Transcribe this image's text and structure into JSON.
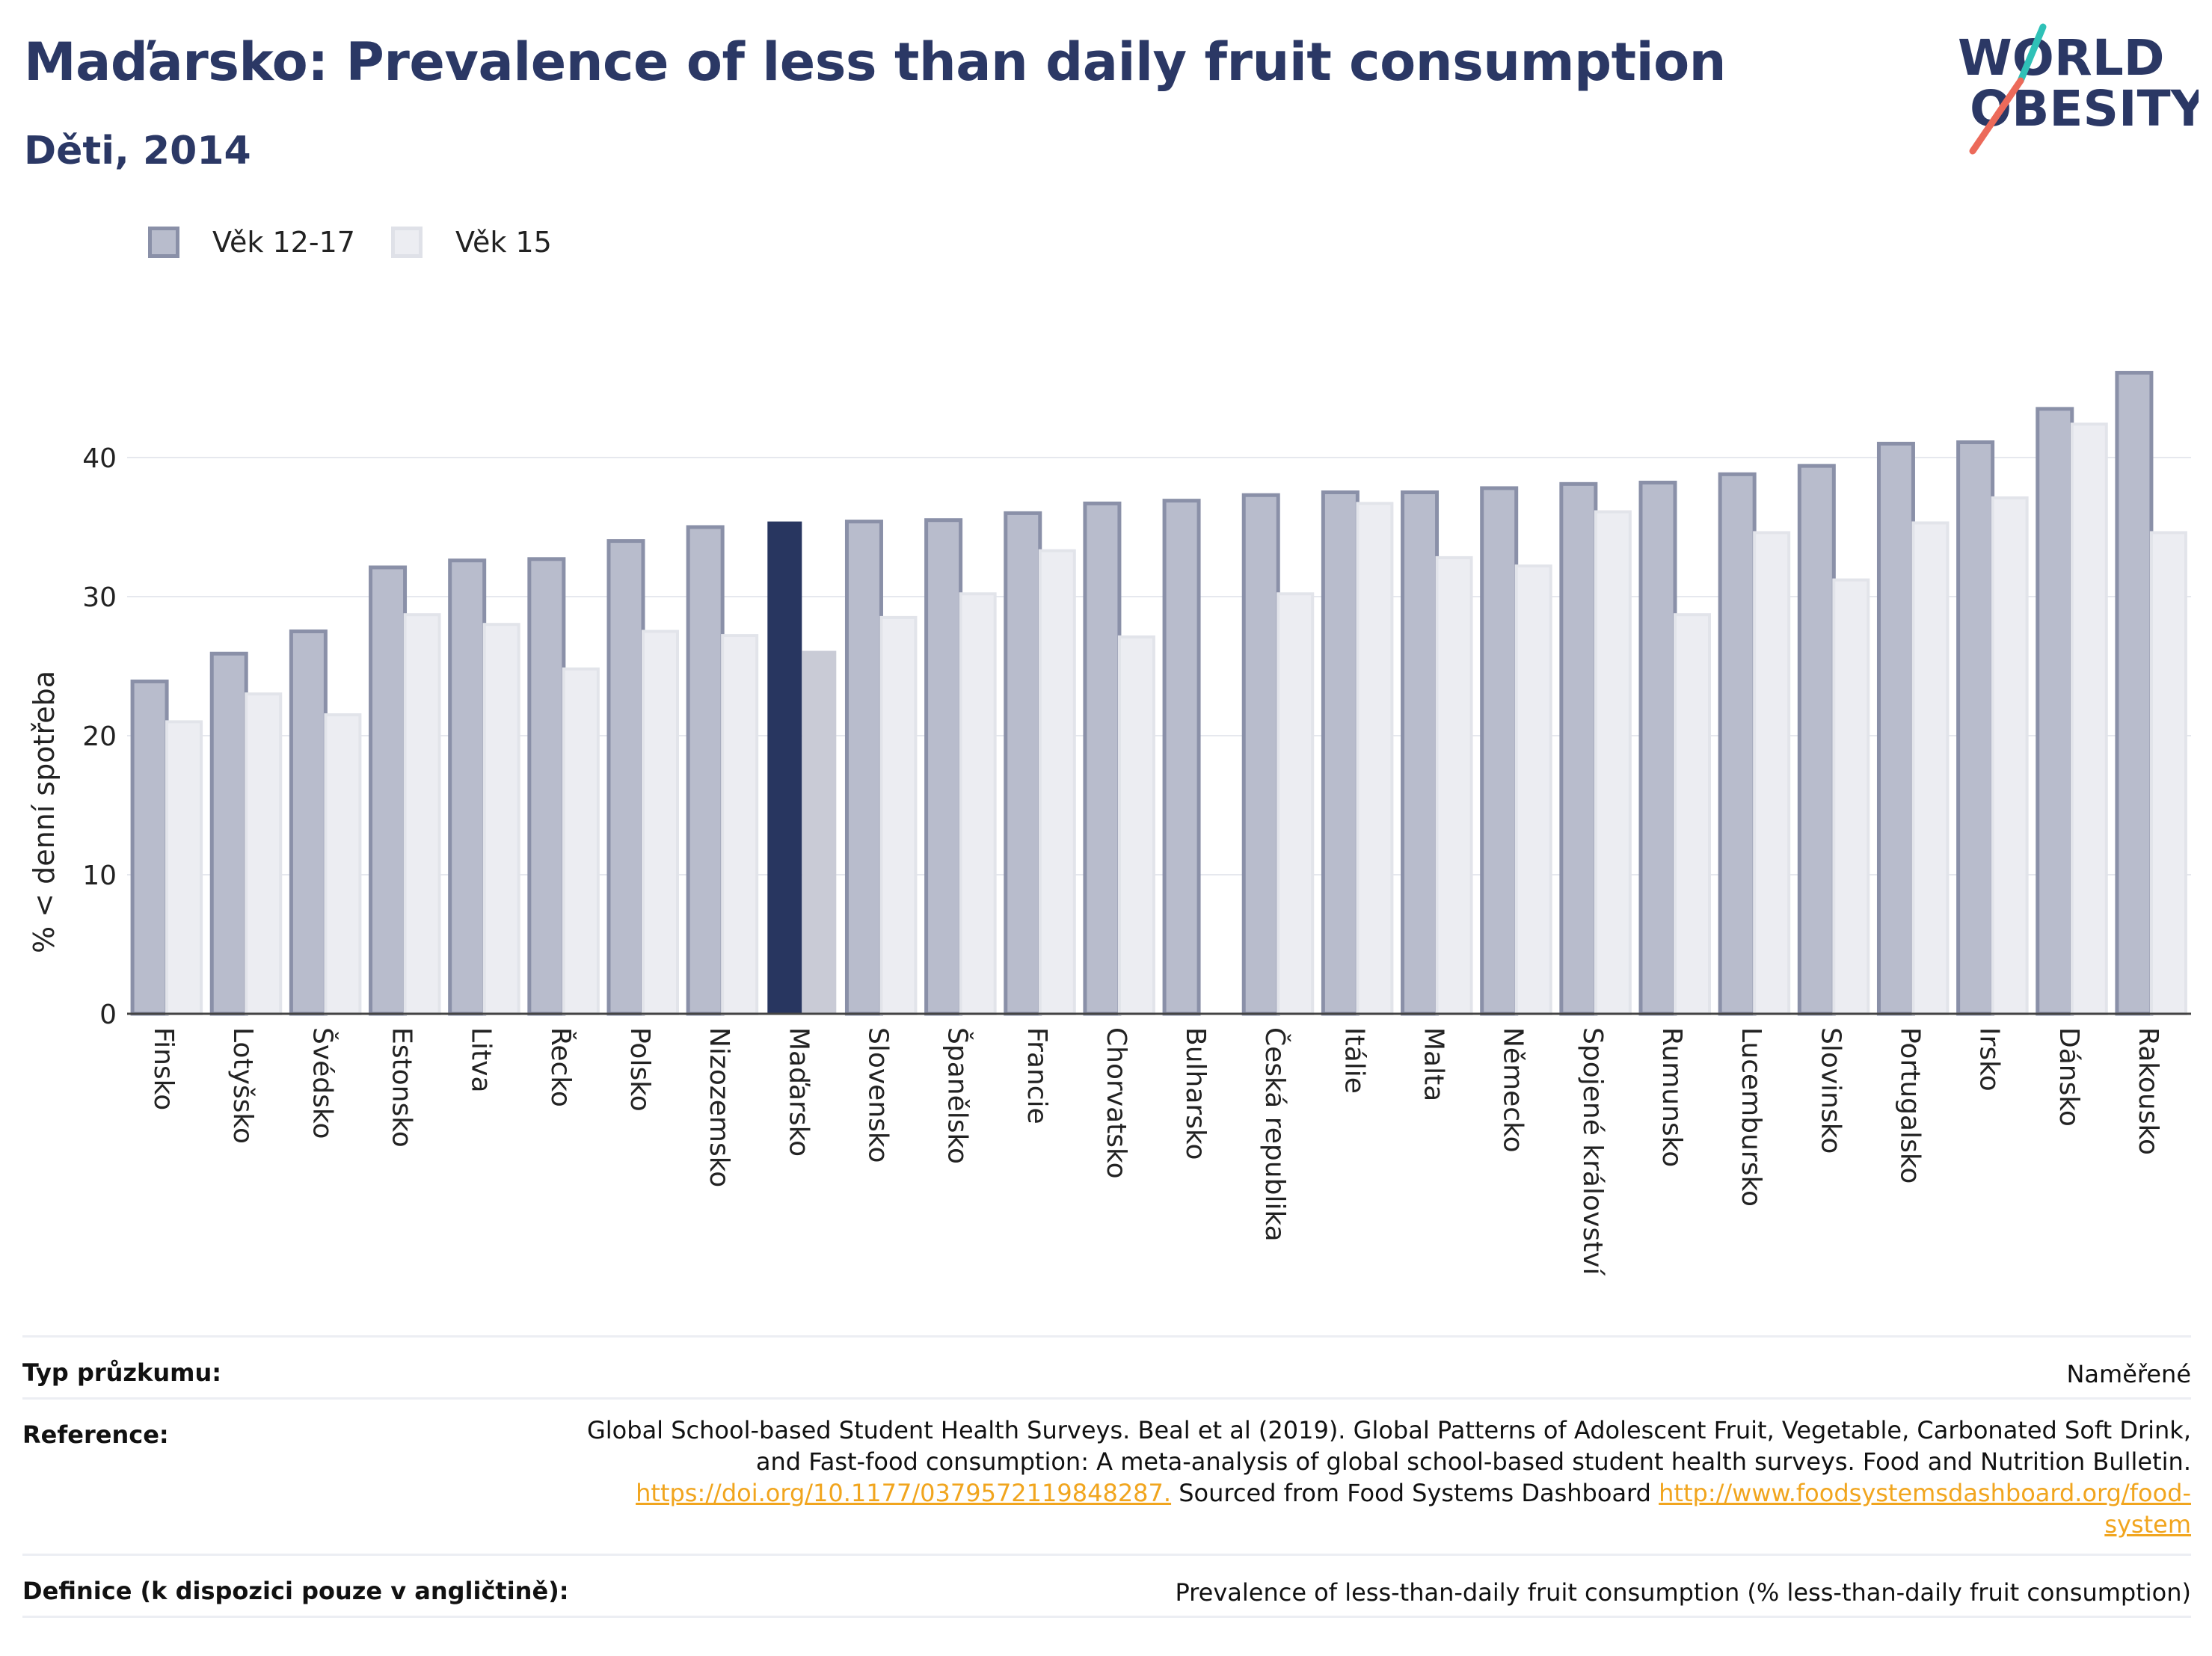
{
  "title": "Maďarsko: Prevalence of less than daily fruit consumption",
  "subtitle": "Děti, 2014",
  "logo": {
    "line1": "WORLD",
    "line2": "OBESITY"
  },
  "legend": [
    {
      "label": "Věk 12-17",
      "color": "#b8bccc"
    },
    {
      "label": "Věk 15",
      "color": "#ecedf2"
    }
  ],
  "colors": {
    "series1": "#b8bccc",
    "series1_border": "#8a90a8",
    "series2": "#ecedf2",
    "series2_border": "#e2e4ea",
    "highlight1": "#283660",
    "highlight2": "#c9cbd6",
    "brand": "#2b3865",
    "link": "#f1a51e"
  },
  "chart_data": {
    "type": "bar",
    "ylabel": "% < denní spotřeba",
    "ylim": [
      0,
      48
    ],
    "yticks": [
      0,
      10,
      20,
      30,
      40
    ],
    "highlight": "Maďarsko",
    "categories": [
      "Finsko",
      "Lotyšsko",
      "Švédsko",
      "Estonsko",
      "Litva",
      "Řecko",
      "Polsko",
      "Nizozemsko",
      "Maďarsko",
      "Slovensko",
      "Španělsko",
      "Francie",
      "Chorvatsko",
      "Bulharsko",
      "Česká republika",
      "Itálie",
      "Malta",
      "Německo",
      "Spojené království",
      "Rumunsko",
      "Lucembursko",
      "Slovinsko",
      "Portugalsko",
      "Irsko",
      "Dánsko",
      "Rakousko"
    ],
    "series": [
      {
        "name": "Věk 12-17",
        "values": [
          23.9,
          25.9,
          27.5,
          32.1,
          32.6,
          32.7,
          34.0,
          35.0,
          35.4,
          35.4,
          35.5,
          36.0,
          36.7,
          36.9,
          37.3,
          37.5,
          37.5,
          37.8,
          38.1,
          38.2,
          38.8,
          39.4,
          41.0,
          41.1,
          43.5,
          46.1
        ]
      },
      {
        "name": "Věk 15",
        "values": [
          21.0,
          23.0,
          21.5,
          28.7,
          28.0,
          24.8,
          27.5,
          27.2,
          26.1,
          28.5,
          30.2,
          33.3,
          27.1,
          null,
          30.2,
          36.7,
          32.8,
          32.2,
          36.1,
          28.7,
          34.6,
          31.2,
          35.3,
          37.1,
          42.4,
          34.6
        ]
      }
    ]
  },
  "info": {
    "survey_type_label": "Typ průzkumu:",
    "survey_type_value": "Naměřené",
    "reference_label": "Reference:",
    "reference_line1": "Global School-based Student Health Surveys. Beal et al (2019). Global Patterns of Adolescent Fruit, Vegetable, Carbonated Soft Drink,",
    "reference_line2": "and Fast-food consumption: A meta-analysis of global school-based student health surveys. Food and Nutrition Bulletin.",
    "reference_link1": "https://doi.org/10.1177/0379572119848287.",
    "reference_mid": " Sourced from Food Systems Dashboard ",
    "reference_link2a": "http://www.foodsystemsdashboard.org/food-",
    "reference_link2b": "system",
    "definition_label": "Definice (k dispozici pouze v angličtině):",
    "definition_value": "Prevalence of less-than-daily fruit consumption (% less-than-daily fruit consumption)"
  }
}
